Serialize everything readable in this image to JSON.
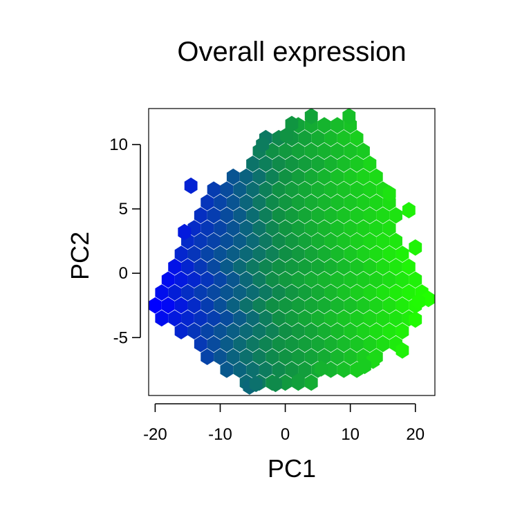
{
  "chart_data": {
    "type": "hexbin",
    "title": "Overall expression",
    "xlabel": "PC1",
    "ylabel": "PC2",
    "xlim": [
      -21,
      23
    ],
    "ylim": [
      -9.5,
      12.8
    ],
    "xticks": [
      -20,
      -10,
      0,
      10,
      20
    ],
    "xtick_labels": [
      "-20",
      "-10",
      "0",
      "10",
      "20"
    ],
    "yticks": [
      -5,
      0,
      5,
      10
    ],
    "ytick_labels": [
      "-5",
      "0",
      "5",
      "10"
    ],
    "grid": false,
    "legend": "none",
    "color_encoding": "PC1 value mapped from blue (low) to green (high)",
    "color_low": "#0000ff",
    "color_mid": "#0f8f45",
    "color_high": "#22ff00",
    "bin_width_x": 2.0,
    "bin_width_y": 1.0,
    "outline_points": [
      [
        -21,
        -2
      ],
      [
        -16.5,
        2.5
      ],
      [
        -12.5,
        6
      ],
      [
        -8.5,
        7.5
      ],
      [
        -5,
        9.5
      ],
      [
        -2,
        11
      ],
      [
        0.5,
        11.5
      ],
      [
        3,
        12.3
      ],
      [
        6,
        12
      ],
      [
        9,
        12.1
      ],
      [
        11,
        11
      ],
      [
        13,
        9
      ],
      [
        15,
        7.5
      ],
      [
        17,
        5.5
      ],
      [
        18.5,
        2.5
      ],
      [
        20,
        0.5
      ],
      [
        22,
        -2
      ],
      [
        19,
        -4
      ],
      [
        17,
        -6
      ],
      [
        14,
        -7
      ],
      [
        10,
        -8
      ],
      [
        6,
        -8.5
      ],
      [
        2,
        -9
      ],
      [
        -2,
        -9
      ],
      [
        -6,
        -9
      ],
      [
        -9,
        -8
      ],
      [
        -12,
        -6.5
      ],
      [
        -16,
        -5
      ],
      [
        -19,
        -4
      ],
      [
        -21,
        -3
      ]
    ],
    "outlier_points": [
      [
        -14.5,
        6.8
      ],
      [
        -15.5,
        3.2
      ],
      [
        -5.5,
        -8.8
      ],
      [
        -4.5,
        -8.6
      ],
      [
        -1.5,
        -8.6
      ],
      [
        2,
        -8.4
      ],
      [
        5.5,
        -7.4
      ],
      [
        13.5,
        -6.8
      ],
      [
        18,
        -6
      ],
      [
        20,
        -3.6
      ],
      [
        22,
        -2
      ],
      [
        20.5,
        -2.2
      ],
      [
        19,
        4.9
      ],
      [
        20,
        2
      ],
      [
        12.2,
        -7.2
      ],
      [
        4,
        12.2
      ],
      [
        9.8,
        12.2
      ],
      [
        1,
        11.6
      ],
      [
        0.2,
        10.7
      ],
      [
        -3.5,
        10
      ],
      [
        16,
        6.2
      ]
    ]
  }
}
